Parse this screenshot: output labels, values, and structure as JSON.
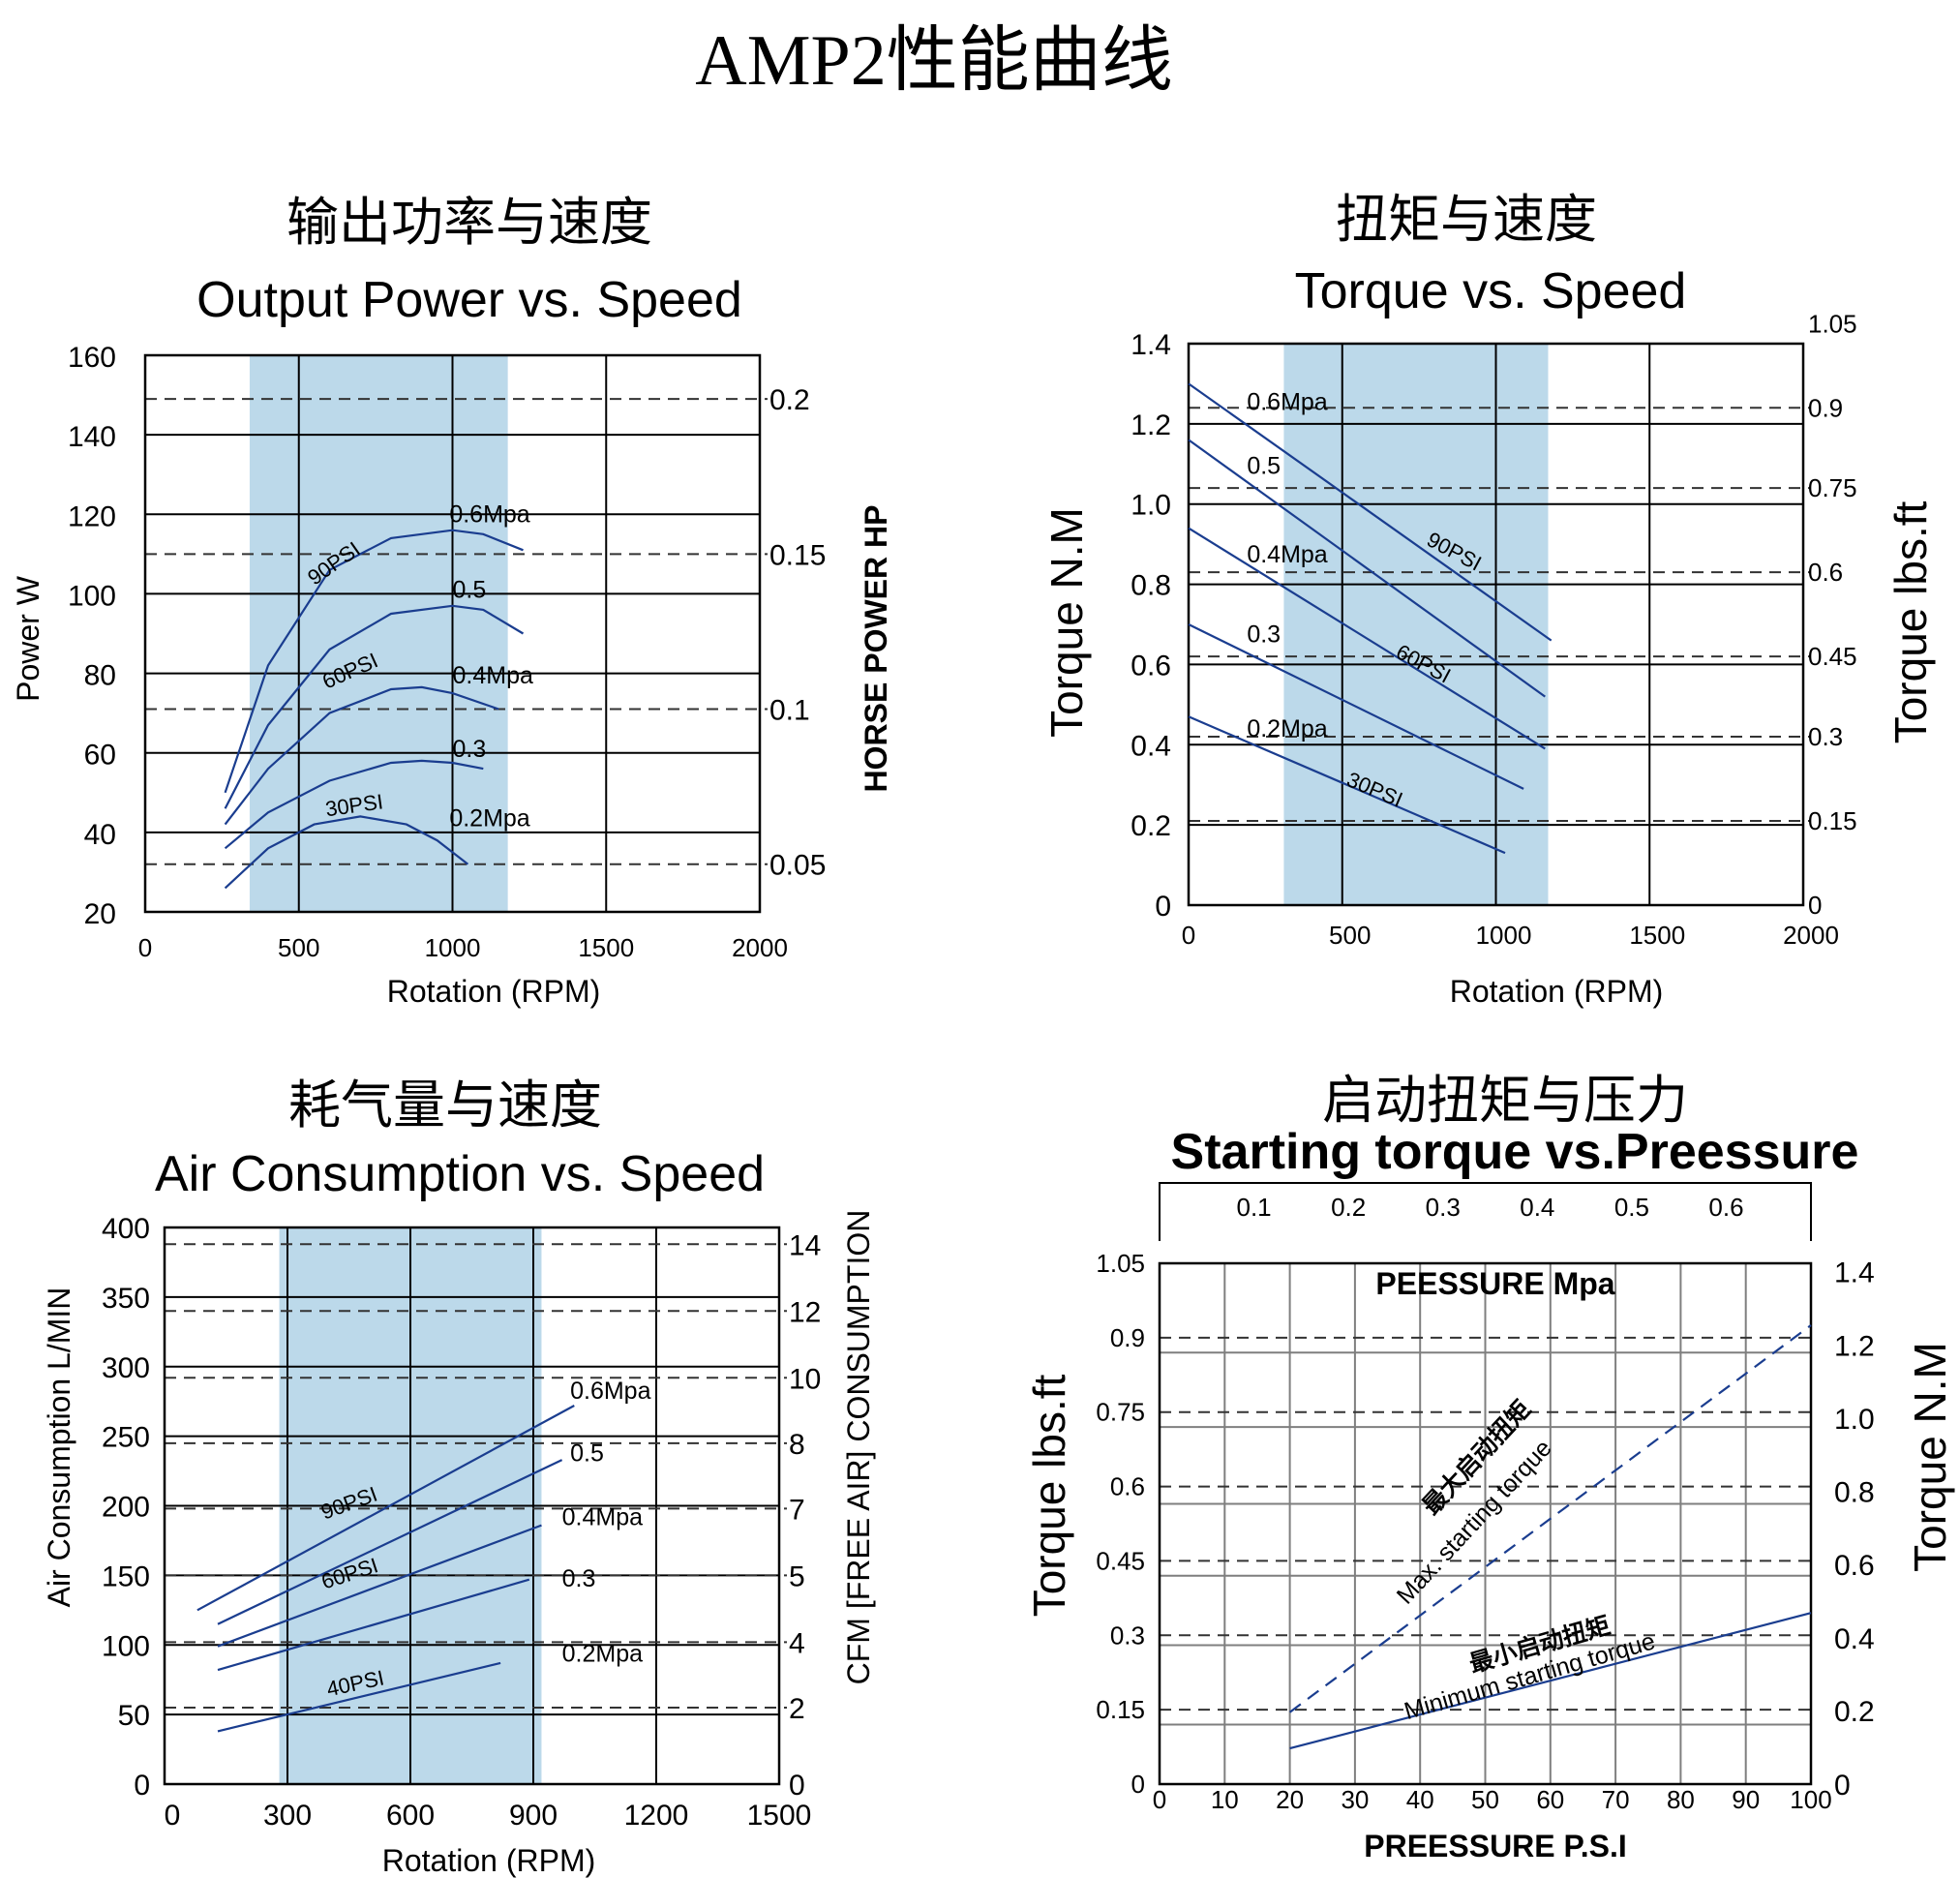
{
  "page_title": "AMP2性能曲线",
  "colors": {
    "curve": "#1a3d8f",
    "band": "#bcd9ea",
    "grid": "#000000"
  },
  "chart_data": [
    {
      "id": "power",
      "type": "line",
      "title_cn": "输出功率与速度",
      "title": "Output  Power  vs. Speed",
      "xlabel": "Rotation (RPM)",
      "ylabel": "Power W",
      "y2label": "HORSE POWER  HP",
      "xlim": [
        0,
        2000
      ],
      "ylim": [
        20,
        160
      ],
      "x_ticks": [
        "0",
        "500",
        "1000",
        "1500",
        "2000"
      ],
      "y_ticks": [
        "20",
        "40",
        "60",
        "80",
        "100",
        "120",
        "140",
        "160"
      ],
      "y2_ticks": [
        "0.05",
        "0.1",
        "0.15",
        "0.2"
      ],
      "y2_tick_values_w": [
        32,
        71,
        110,
        149
      ],
      "band_x": [
        340,
        1180
      ],
      "series": [
        {
          "name": "0.6Mpa",
          "points": [
            [
              260,
              50
            ],
            [
              400,
              82
            ],
            [
              600,
              106
            ],
            [
              800,
              114
            ],
            [
              1000,
              116
            ],
            [
              1100,
              115
            ],
            [
              1230,
              111
            ]
          ]
        },
        {
          "name": "0.5",
          "points": [
            [
              260,
              46
            ],
            [
              400,
              67
            ],
            [
              600,
              86
            ],
            [
              800,
              95
            ],
            [
              1000,
              97
            ],
            [
              1100,
              96
            ],
            [
              1230,
              90
            ]
          ]
        },
        {
          "name": "0.4Mpa",
          "points": [
            [
              260,
              42
            ],
            [
              400,
              56
            ],
            [
              600,
              70
            ],
            [
              800,
              76
            ],
            [
              900,
              76.5
            ],
            [
              1000,
              75
            ],
            [
              1150,
              71
            ]
          ]
        },
        {
          "name": "0.3",
          "points": [
            [
              260,
              36
            ],
            [
              400,
              45
            ],
            [
              600,
              53
            ],
            [
              800,
              57.5
            ],
            [
              900,
              58
            ],
            [
              1000,
              57.5
            ],
            [
              1100,
              56
            ]
          ]
        },
        {
          "name": "0.2Mpa",
          "points": [
            [
              260,
              26
            ],
            [
              400,
              36
            ],
            [
              550,
              42
            ],
            [
              700,
              44
            ],
            [
              850,
              42
            ],
            [
              950,
              38
            ],
            [
              1050,
              32
            ]
          ]
        }
      ],
      "psi_labels": [
        "90PSI",
        "60PSI",
        "30PSI"
      ]
    },
    {
      "id": "torque",
      "type": "line",
      "title_cn": "扭矩与速度",
      "title": "Torque  vs. Speed",
      "xlabel": "Rotation (RPM)",
      "ylabel": "Torque N.M",
      "y2label": "Torque  lbs.ft",
      "xlim": [
        0,
        2000
      ],
      "ylim": [
        0,
        1.4
      ],
      "x_ticks": [
        "0",
        "500",
        "1000",
        "1500",
        "2000"
      ],
      "y_ticks": [
        "0",
        "0.2",
        "0.4",
        "0.6",
        "0.8",
        "1.0",
        "1.2",
        "1.4"
      ],
      "y2_ticks": [
        "0",
        "0.15",
        "0.3",
        "0.45",
        "0.6",
        "0.75",
        "0.9",
        "1.05"
      ],
      "y2_tick_values_nm": [
        0,
        0.21,
        0.42,
        0.62,
        0.83,
        1.04,
        1.24,
        1.45
      ],
      "band_x": [
        310,
        1170
      ],
      "series": [
        {
          "name": "0.6Mpa",
          "points": [
            [
              0,
              1.3
            ],
            [
              1180,
              0.66
            ]
          ]
        },
        {
          "name": "0.5",
          "points": [
            [
              0,
              1.16
            ],
            [
              1160,
              0.52
            ]
          ]
        },
        {
          "name": "0.4Mpa",
          "points": [
            [
              0,
              0.94
            ],
            [
              1160,
              0.39
            ]
          ]
        },
        {
          "name": "0.3",
          "points": [
            [
              0,
              0.7
            ],
            [
              1090,
              0.29
            ]
          ]
        },
        {
          "name": "0.2Mpa",
          "points": [
            [
              0,
              0.47
            ],
            [
              1030,
              0.13
            ]
          ]
        }
      ],
      "psi_labels": [
        "90PSI",
        "60PSI",
        "30PSI"
      ]
    },
    {
      "id": "air",
      "type": "line",
      "title_cn": "耗气量与速度",
      "title": "Air Consumption  vs. Speed",
      "xlabel": "Rotation (RPM)",
      "ylabel": "Air Consumption L/MIN",
      "y2label": "CFM [FREE AIR] CONSUMPTION",
      "xlim": [
        0,
        1500
      ],
      "ylim": [
        0,
        400
      ],
      "x_ticks": [
        "0",
        "300",
        "600",
        "900",
        "1200",
        "1500"
      ],
      "y_ticks": [
        "0",
        "50",
        "100",
        "150",
        "200",
        "250",
        "300",
        "350",
        "400"
      ],
      "y2_ticks": [
        "0",
        "2",
        "4",
        "5",
        "7",
        "8",
        "10",
        "12",
        "14"
      ],
      "y2_tick_values_lmin": [
        0,
        55,
        102,
        150,
        198,
        245,
        292,
        340,
        388
      ],
      "band_x": [
        280,
        920
      ],
      "series": [
        {
          "name": "0.6Mpa",
          "points": [
            [
              80,
              125
            ],
            [
              1000,
              272
            ]
          ]
        },
        {
          "name": "0.5",
          "points": [
            [
              130,
              115
            ],
            [
              970,
              233
            ]
          ]
        },
        {
          "name": "0.4Mpa",
          "points": [
            [
              130,
              99
            ],
            [
              920,
              186
            ]
          ]
        },
        {
          "name": "0.3",
          "points": [
            [
              130,
              82
            ],
            [
              890,
              147
            ]
          ]
        },
        {
          "name": "0.2Mpa",
          "points": [
            [
              130,
              38
            ],
            [
              820,
              87
            ]
          ]
        }
      ],
      "psi_labels": [
        "90PSI",
        "60PSI",
        "40PSI"
      ]
    },
    {
      "id": "starting",
      "type": "line",
      "title_cn": "启动扭矩与压力",
      "title": "Starting torque vs.Preessure",
      "xlabel": "PREESSURE   P.S.I",
      "top_axis_label": "PEESSURE  Mpa",
      "ylabel": "Torque  lbs.ft",
      "y2label": "Torque N.M",
      "xlim": [
        0,
        100
      ],
      "ylim": [
        0,
        1.05
      ],
      "x_ticks": [
        "0",
        "10",
        "20",
        "30",
        "40",
        "50",
        "60",
        "70",
        "80",
        "90",
        "100"
      ],
      "top_ticks": [
        "0.1",
        "0.2",
        "0.3",
        "0.4",
        "0.5",
        "0.6"
      ],
      "top_tick_values_psi": [
        14.5,
        29,
        43.5,
        58,
        72.5,
        87
      ],
      "y_ticks": [
        "0",
        "0.15",
        "0.3",
        "0.45",
        "0.6",
        "0.75",
        "0.9",
        "1.05"
      ],
      "y2_ticks": [
        "0",
        "0.2",
        "0.4",
        "0.6",
        "0.8",
        "1.0",
        "1.2",
        "1.4"
      ],
      "y2_tick_values_lbft": [
        0,
        0.148,
        0.295,
        0.443,
        0.59,
        0.738,
        0.885,
        1.033
      ],
      "series": [
        {
          "name": "Max. starting torque",
          "name_cn": "最大启动扭矩",
          "style": "dashed",
          "points": [
            [
              20,
              0.145
            ],
            [
              100,
              0.925
            ]
          ]
        },
        {
          "name": "Minimum starting torque",
          "name_cn": "最小启动扭矩",
          "style": "solid",
          "points": [
            [
              20,
              0.072
            ],
            [
              100,
              0.345
            ]
          ]
        }
      ]
    }
  ]
}
